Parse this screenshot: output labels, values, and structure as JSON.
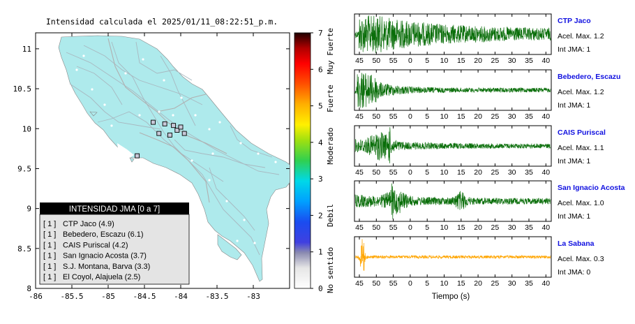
{
  "map": {
    "title": "Intensidad calculada el 2025/01/11_08:22:51_p.m.",
    "x_ticks": [
      "-86",
      "-85.5",
      "-85",
      "-84.5",
      "-84",
      "-83.5",
      "-83"
    ],
    "y_ticks": [
      "8",
      "8.5",
      "9",
      "9.5",
      "10",
      "10.5",
      "11"
    ],
    "land_color": "#aeeaec",
    "legend": {
      "header": "INTENSIDAD JMA [0 a 7]",
      "items": [
        {
          "level": "[ 1 ]",
          "name": "CTP Jaco (4.9)"
        },
        {
          "level": "[ 1 ]",
          "name": "Bebedero, Escazu (6.1)"
        },
        {
          "level": "[ 1 ]",
          "name": "CAIS Puriscal (4.2)"
        },
        {
          "level": "[ 1 ]",
          "name": "San Ignacio Acosta (3.7)"
        },
        {
          "level": "[ 1 ]",
          "name": "S.J. Montana, Barva (3.3)"
        },
        {
          "level": "[ 1 ]",
          "name": "El Coyol, Alajuela (2.5)"
        }
      ]
    }
  },
  "colorbar": {
    "ticks": [
      "0",
      "1",
      "2",
      "3",
      "4",
      "5",
      "6",
      "7"
    ],
    "labels": [
      "No sentido",
      "Debil",
      "Moderado",
      "Fuerte",
      "Muy Fuerte"
    ],
    "range": [
      0,
      7
    ]
  },
  "waveforms": {
    "x_ticks": [
      "45",
      "50",
      "55",
      "0",
      "5",
      "10",
      "15",
      "20",
      "25",
      "30",
      "35",
      "40"
    ],
    "xlabel": "Tiempo (s)",
    "panels": [
      {
        "station": "CTP Jaco",
        "acel": "Acel. Max. 1.2",
        "int": "Int JMA: 1",
        "color": "#0a6e0a",
        "pattern": "burst_start",
        "amplitude": 1.2
      },
      {
        "station": "Bebedero, Escazu",
        "acel": "Acel. Max. 1.2",
        "int": "Int JMA: 1",
        "color": "#0a6e0a",
        "pattern": "early_spike",
        "amplitude": 1.2
      },
      {
        "station": "CAIS Puriscal",
        "acel": "Acel. Max. 1.1",
        "int": "Int JMA: 1",
        "color": "#0a6e0a",
        "pattern": "mid_spike",
        "amplitude": 1.1
      },
      {
        "station": "San Ignacio Acosta",
        "acel": "Acel. Max. 1.0",
        "int": "Int JMA: 1",
        "color": "#0a6e0a",
        "pattern": "two_bursts",
        "amplitude": 1.0
      },
      {
        "station": "La Sabana",
        "acel": "Acel. Max. 0.3",
        "int": "Int JMA: 0",
        "color": "#ffa500",
        "pattern": "single_spike",
        "amplitude": 0.3
      }
    ]
  },
  "chart_data": [
    {
      "type": "scatter",
      "title": "Intensidad calculada el 2025/01/11_08:22:51_p.m.",
      "xlim": [
        -86,
        -82.5
      ],
      "ylim": [
        8,
        11.2
      ],
      "grid": false,
      "legend_placement": "bottom-left",
      "series": [
        {
          "name": "INTENSIDAD JMA [0 a 7]",
          "x": [
            -84.38,
            -84.22,
            -84.1,
            -84.05,
            -84.0,
            -83.95,
            -84.3,
            -84.15,
            -84.6
          ],
          "y": [
            10.08,
            10.06,
            10.04,
            9.98,
            10.02,
            9.94,
            9.94,
            9.92,
            9.66
          ]
        }
      ]
    },
    {
      "type": "line",
      "xlabel": "Tiempo (s)",
      "categories": [
        "45",
        "50",
        "55",
        "0",
        "5",
        "10",
        "15",
        "20",
        "25",
        "30",
        "35",
        "40"
      ],
      "series": [
        {
          "name": "CTP Jaco",
          "peak": 1.2
        },
        {
          "name": "Bebedero, Escazu",
          "peak": 1.2
        },
        {
          "name": "CAIS Puriscal",
          "peak": 1.1
        },
        {
          "name": "San Ignacio Acosta",
          "peak": 1.0
        },
        {
          "name": "La Sabana",
          "peak": 0.3
        }
      ]
    }
  ]
}
